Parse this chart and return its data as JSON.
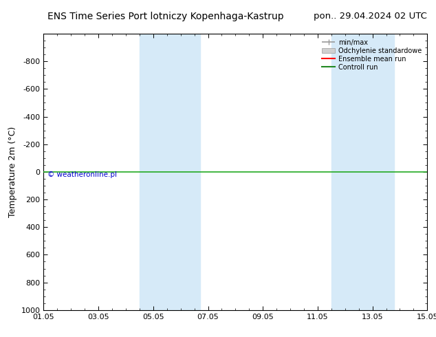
{
  "title_left": "ENS Time Series Port lotniczy Kopenhaga-Kastrup",
  "title_right": "pon.. 29.04.2024 02 UTC",
  "ylabel": "Temperature 2m (°C)",
  "ylim_top": -1000,
  "ylim_bottom": 1000,
  "yticks": [
    -800,
    -600,
    -400,
    -200,
    0,
    200,
    400,
    600,
    800,
    1000
  ],
  "xlim": [
    0,
    14
  ],
  "xtick_labels": [
    "01.05",
    "03.05",
    "05.05",
    "07.05",
    "09.05",
    "11.05",
    "13.05",
    "15.05"
  ],
  "xtick_positions": [
    0,
    2,
    4,
    6,
    8,
    10,
    12,
    14
  ],
  "shaded_bands": [
    {
      "x_start": 3.5,
      "x_end": 4.5
    },
    {
      "x_start": 4.5,
      "x_end": 5.7
    },
    {
      "x_start": 10.5,
      "x_end": 11.5
    },
    {
      "x_start": 11.5,
      "x_end": 12.8
    }
  ],
  "shade_color": "#d6eaf8",
  "horizontal_line_y": 0,
  "horizontal_line_color": "#22aa22",
  "ensemble_mean_color": "#ff0000",
  "control_run_color": "#228822",
  "copyright_text": "© weatheronline.pl",
  "copyright_color": "#0000cc",
  "legend_items": [
    "min/max",
    "Odchylenie standardowe",
    "Ensemble mean run",
    "Controll run"
  ],
  "bg_color": "#ffffff",
  "axis_bg_color": "#ffffff",
  "title_fontsize": 10,
  "tick_fontsize": 8,
  "ylabel_fontsize": 9
}
